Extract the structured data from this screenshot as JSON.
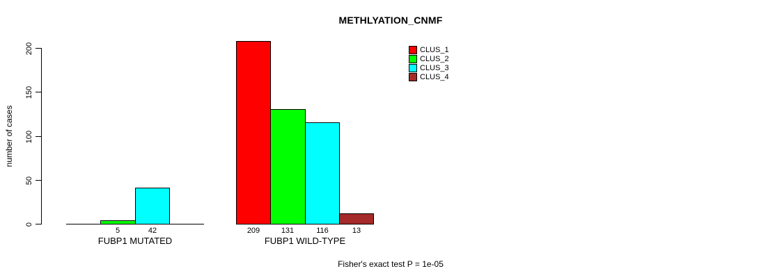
{
  "chart_data": {
    "type": "bar",
    "title": "METHLYATION_CNMF",
    "ylabel": "number of cases",
    "xlabel": "",
    "ylim": [
      0,
      215
    ],
    "yticks": [
      0,
      50,
      100,
      150,
      200
    ],
    "grid": false,
    "categories": [
      "FUBP1 MUTATED",
      "FUBP1 WILD-TYPE"
    ],
    "series": [
      {
        "name": "CLUS_1",
        "color": "#ff0000",
        "values": [
          0,
          209
        ]
      },
      {
        "name": "CLUS_2",
        "color": "#00ff00",
        "values": [
          5,
          131
        ]
      },
      {
        "name": "CLUS_3",
        "color": "#00ffff",
        "values": [
          42,
          116
        ]
      },
      {
        "name": "CLUS_4",
        "color": "#a52a2a",
        "values": [
          0,
          13
        ]
      }
    ],
    "bar_value_labels": [
      [
        "",
        "5",
        "42",
        ""
      ],
      [
        "209",
        "131",
        "116",
        "13"
      ]
    ],
    "legend_position": "top-right",
    "legend_entries": [
      "CLUS_1",
      "CLUS_2",
      "CLUS_3",
      "CLUS_4"
    ],
    "annotation": "Fisher's exact test P = 1e-05"
  }
}
